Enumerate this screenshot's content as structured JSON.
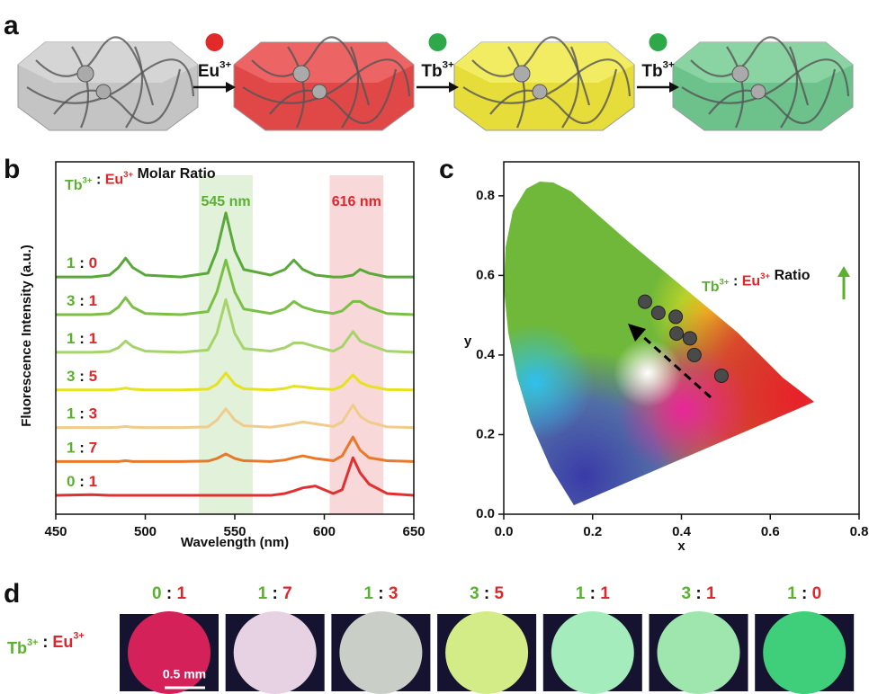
{
  "panel_labels": [
    "a",
    "b",
    "c",
    "d"
  ],
  "panel_a": {
    "steps": [
      [
        {
          "text": "Eu",
          "sup": "3+"
        }
      ],
      [
        {
          "text": "Tb",
          "sup": "3+"
        }
      ],
      [
        {
          "text": "Tb",
          "sup": "3+"
        }
      ]
    ]
  },
  "chart_data": [
    {
      "type": "line",
      "title": [
        {
          "text": "Tb",
          "sup": "3+",
          "color": "#5bb030"
        },
        {
          "text": " : "
        },
        {
          "text": "Eu",
          "sup": "3+",
          "color": "#e0262b"
        },
        {
          "text": " Molar Ratio"
        }
      ],
      "xlabel": "Wavelength (nm)",
      "ylabel": "Fluorescence Intensity (a.u.)",
      "xlim": [
        450,
        650
      ],
      "xticks": [
        450,
        500,
        550,
        600,
        650
      ],
      "ylim": [
        0,
        9
      ],
      "bands": [
        {
          "range": [
            530,
            560
          ],
          "label": "545 nm",
          "color": "#5bb030"
        },
        {
          "range": [
            603,
            633
          ],
          "label": "616 nm",
          "color": "#e0262b"
        }
      ],
      "x": [
        450,
        470,
        480,
        485,
        489,
        493,
        500,
        520,
        535,
        540,
        545,
        550,
        555,
        570,
        578,
        583,
        588,
        595,
        605,
        610,
        616,
        620,
        625,
        635,
        650
      ],
      "series": [
        {
          "label": [
            {
              "text": "1",
              "color": "#5bb030"
            },
            {
              "text": " : "
            },
            {
              "text": "0",
              "color": "#e0262b"
            }
          ],
          "color": "#5aa83a",
          "values": [
            6.3,
            6.3,
            6.35,
            6.55,
            6.8,
            6.55,
            6.35,
            6.3,
            6.4,
            7.0,
            8.0,
            7.0,
            6.5,
            6.35,
            6.5,
            6.75,
            6.5,
            6.35,
            6.3,
            6.3,
            6.35,
            6.5,
            6.4,
            6.3,
            6.3
          ]
        },
        {
          "label": [
            {
              "text": "3",
              "color": "#5bb030"
            },
            {
              "text": " : "
            },
            {
              "text": "1",
              "color": "#e0262b"
            }
          ],
          "color": "#7cbf45",
          "values": [
            5.3,
            5.3,
            5.33,
            5.5,
            5.75,
            5.5,
            5.33,
            5.3,
            5.38,
            5.9,
            6.75,
            5.9,
            5.45,
            5.33,
            5.45,
            5.65,
            5.5,
            5.4,
            5.33,
            5.4,
            5.65,
            5.65,
            5.5,
            5.33,
            5.3
          ]
        },
        {
          "label": [
            {
              "text": "1",
              "color": "#5bb030"
            },
            {
              "text": " : "
            },
            {
              "text": "1",
              "color": "#e0262b"
            }
          ],
          "color": "#a6d36a",
          "values": [
            4.3,
            4.3,
            4.32,
            4.42,
            4.6,
            4.45,
            4.33,
            4.3,
            4.36,
            4.8,
            5.7,
            4.8,
            4.4,
            4.33,
            4.42,
            4.55,
            4.55,
            4.45,
            4.33,
            4.45,
            4.85,
            4.6,
            4.5,
            4.33,
            4.3
          ]
        },
        {
          "label": [
            {
              "text": "3",
              "color": "#5bb030"
            },
            {
              "text": " : "
            },
            {
              "text": "5",
              "color": "#e0262b"
            }
          ],
          "color": "#e6e21f",
          "values": [
            3.3,
            3.3,
            3.3,
            3.32,
            3.35,
            3.32,
            3.3,
            3.3,
            3.32,
            3.45,
            3.75,
            3.45,
            3.33,
            3.3,
            3.34,
            3.4,
            3.38,
            3.34,
            3.31,
            3.4,
            3.7,
            3.5,
            3.4,
            3.31,
            3.3
          ]
        },
        {
          "label": [
            {
              "text": "1",
              "color": "#5bb030"
            },
            {
              "text": " : "
            },
            {
              "text": "3",
              "color": "#e0262b"
            }
          ],
          "color": "#f0cc8c",
          "values": [
            2.3,
            2.3,
            2.3,
            2.31,
            2.33,
            2.31,
            2.3,
            2.3,
            2.32,
            2.5,
            2.8,
            2.5,
            2.35,
            2.31,
            2.36,
            2.4,
            2.45,
            2.4,
            2.33,
            2.45,
            2.9,
            2.6,
            2.45,
            2.32,
            2.3
          ]
        },
        {
          "label": [
            {
              "text": "1",
              "color": "#5bb030"
            },
            {
              "text": " : "
            },
            {
              "text": "7",
              "color": "#e0262b"
            }
          ],
          "color": "#e8792a",
          "values": [
            1.4,
            1.4,
            1.4,
            1.4,
            1.42,
            1.4,
            1.4,
            1.4,
            1.41,
            1.48,
            1.6,
            1.48,
            1.42,
            1.4,
            1.44,
            1.5,
            1.55,
            1.48,
            1.42,
            1.55,
            2.05,
            1.7,
            1.5,
            1.42,
            1.4
          ]
        },
        {
          "label": [
            {
              "text": "0",
              "color": "#5bb030"
            },
            {
              "text": " : "
            },
            {
              "text": "1",
              "color": "#e0262b"
            }
          ],
          "color": "#e03030",
          "values": [
            0.5,
            0.52,
            0.5,
            0.5,
            0.5,
            0.5,
            0.5,
            0.5,
            0.5,
            0.5,
            0.5,
            0.5,
            0.5,
            0.5,
            0.55,
            0.62,
            0.7,
            0.75,
            0.55,
            0.65,
            1.5,
            1.1,
            0.8,
            0.55,
            0.5
          ]
        }
      ]
    },
    {
      "type": "scatter",
      "xlabel": "x",
      "ylabel": "y",
      "xlim": [
        0,
        0.8
      ],
      "ylim": [
        0,
        0.89
      ],
      "xticks": [
        {
          "value": 0,
          "label": "0.0"
        },
        0.2,
        0.4,
        0.6,
        0.8
      ],
      "yticks": [
        {
          "value": 0,
          "label": "0.0"
        },
        0.2,
        0.4,
        0.6,
        0.8
      ],
      "annotation": [
        {
          "text": "Tb",
          "sup": "3+",
          "color": "#5bb030"
        },
        {
          "text": " : "
        },
        {
          "text": "Eu",
          "sup": "3+",
          "color": "#e0262b"
        },
        {
          "text": " Ratio"
        }
      ],
      "color": "#4a4a4a",
      "x": [
        0.49,
        0.429,
        0.419,
        0.389,
        0.387,
        0.348,
        0.318
      ],
      "y": [
        0.348,
        0.4,
        0.442,
        0.454,
        0.496,
        0.506,
        0.534
      ]
    }
  ],
  "panel_d": {
    "label": [
      {
        "text": "Tb",
        "sup": "3+",
        "color": "#5bb030"
      },
      {
        "text": " : "
      },
      {
        "text": "Eu",
        "sup": "3+",
        "color": "#e0262b"
      }
    ],
    "scale_bar": "0.5 mm",
    "samples": [
      {
        "ratio": [
          {
            "text": "0",
            "color": "#5bb030"
          },
          {
            "text": " : "
          },
          {
            "text": "1",
            "color": "#e0262b"
          }
        ],
        "color": "#d4215a"
      },
      {
        "ratio": [
          {
            "text": "1",
            "color": "#5bb030"
          },
          {
            "text": " : "
          },
          {
            "text": "7",
            "color": "#e0262b"
          }
        ],
        "color": "#e6d2e2"
      },
      {
        "ratio": [
          {
            "text": "1",
            "color": "#5bb030"
          },
          {
            "text": " : "
          },
          {
            "text": "3",
            "color": "#e0262b"
          }
        ],
        "color": "#c9cec6"
      },
      {
        "ratio": [
          {
            "text": "3",
            "color": "#5bb030"
          },
          {
            "text": " : "
          },
          {
            "text": "5",
            "color": "#e0262b"
          }
        ],
        "color": "#d3ec88"
      },
      {
        "ratio": [
          {
            "text": "1",
            "color": "#5bb030"
          },
          {
            "text": " : "
          },
          {
            "text": "1",
            "color": "#e0262b"
          }
        ],
        "color": "#a4ecbc"
      },
      {
        "ratio": [
          {
            "text": "3",
            "color": "#5bb030"
          },
          {
            "text": " : "
          },
          {
            "text": "1",
            "color": "#e0262b"
          }
        ],
        "color": "#9ee6ae"
      },
      {
        "ratio": [
          {
            "text": "1",
            "color": "#5bb030"
          },
          {
            "text": " : "
          },
          {
            "text": "0",
            "color": "#e0262b"
          }
        ],
        "color": "#3fcf7a"
      }
    ]
  }
}
